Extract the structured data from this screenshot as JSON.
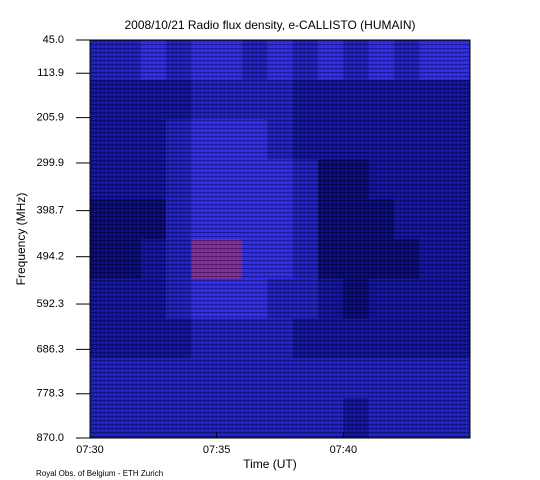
{
  "chart_data": {
    "type": "heatmap",
    "title": "2008/10/21  Radio flux density, e-CALLISTO (HUMAIN)",
    "x_label": "Time (UT)",
    "y_label": "Frequency (MHz)",
    "footer": "Royal Obs. of Belgium - ETH Zurich",
    "x": [
      "07:30",
      "07:31",
      "07:32",
      "07:33",
      "07:34",
      "07:35",
      "07:36",
      "07:37",
      "07:38",
      "07:39",
      "07:40",
      "07:41",
      "07:42",
      "07:43",
      "07:44"
    ],
    "xlim": [
      "07:30",
      "07:45"
    ],
    "xticks": [
      "07:30",
      "07:35",
      "07:40"
    ],
    "y_edges": [
      45,
      127.5,
      210,
      292.5,
      375,
      457.5,
      540,
      622.5,
      705,
      787.5,
      870
    ],
    "ylim": [
      870,
      45
    ],
    "yticks": [
      {
        "value": 45,
        "label": "45.0"
      },
      113.9,
      205.9,
      299.9,
      398.7,
      494.2,
      592.3,
      686.3,
      778.3,
      {
        "value": 870,
        "label": "870.0"
      }
    ],
    "zlim": [
      0,
      10
    ],
    "colors": [
      "#000020",
      "#0a0a90",
      "#2a2ae8",
      "#ff2828",
      "#ffffa0"
    ],
    "z": [
      [
        4,
        4,
        5,
        4,
        5,
        5,
        4,
        5,
        4,
        5,
        4,
        5,
        4,
        5,
        5
      ],
      [
        3,
        3,
        3,
        3,
        4,
        4,
        4,
        4,
        3,
        3,
        3,
        3,
        3,
        3,
        3
      ],
      [
        3,
        3,
        3,
        4,
        5,
        5,
        5,
        4,
        3,
        3,
        3,
        3,
        3,
        3,
        3
      ],
      [
        3,
        3,
        3,
        4,
        5,
        5,
        5,
        5,
        4,
        2,
        2,
        3,
        3,
        3,
        3
      ],
      [
        2,
        2,
        2,
        4,
        5,
        5,
        5,
        5,
        4,
        2,
        2,
        2,
        3,
        3,
        3
      ],
      [
        2,
        2,
        3,
        4,
        6,
        6,
        5,
        5,
        4,
        2,
        2,
        2,
        2,
        3,
        3
      ],
      [
        3,
        3,
        3,
        4,
        5,
        5,
        5,
        4,
        4,
        3,
        2,
        3,
        3,
        3,
        3
      ],
      [
        3,
        3,
        3,
        3,
        4,
        4,
        4,
        4,
        3,
        3,
        3,
        3,
        3,
        3,
        3
      ],
      [
        4,
        4,
        4,
        4,
        4,
        4,
        4,
        4,
        4,
        4,
        4,
        4,
        4,
        4,
        4
      ],
      [
        4,
        4,
        4,
        4,
        4,
        4,
        4,
        4,
        4,
        4,
        3,
        4,
        4,
        4,
        4
      ]
    ]
  }
}
